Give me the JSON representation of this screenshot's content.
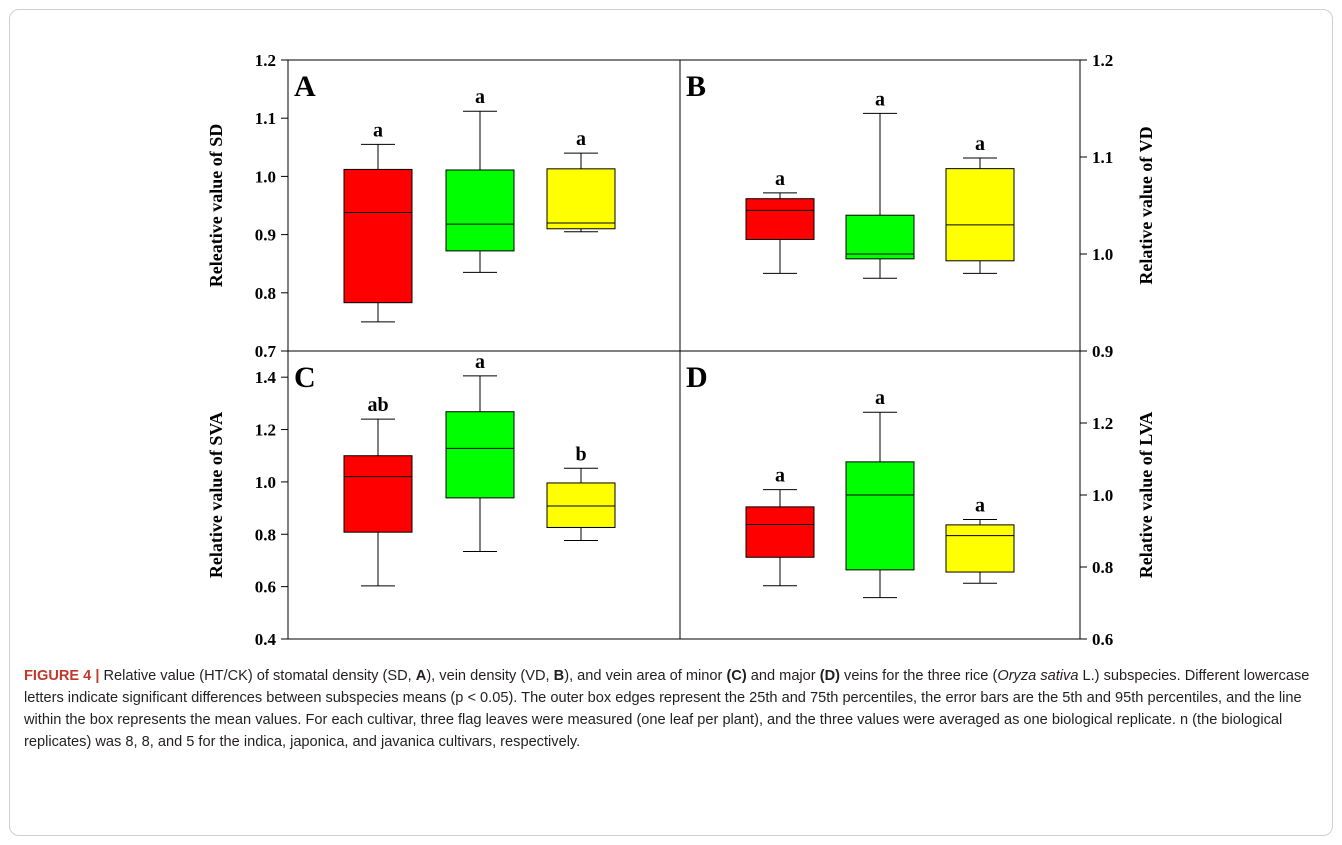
{
  "chart_data": {
    "type": "box",
    "categories": [
      "Indica",
      "Japonica",
      "Javanica"
    ],
    "colors": {
      "Indica": "#ff0000",
      "Japonica": "#00ff00",
      "Javanica": "#ffff00"
    },
    "panels": [
      {
        "label": "A",
        "ylabel": "Releative value of SD",
        "ylim": [
          0.7,
          1.2
        ],
        "yticks": [
          "0.7",
          "0.8",
          "0.9",
          "1.0",
          "1.1",
          "1.2"
        ],
        "axis_side": "left",
        "boxes": [
          {
            "category": "Indica",
            "whisker_low": 0.75,
            "q1": 0.783,
            "mean": 0.938,
            "q3": 1.012,
            "whisker_high": 1.055,
            "letter": "a"
          },
          {
            "category": "Japonica",
            "whisker_low": 0.835,
            "q1": 0.872,
            "mean": 0.918,
            "q3": 1.011,
            "whisker_high": 1.112,
            "letter": "a"
          },
          {
            "category": "Javanica",
            "whisker_low": 0.905,
            "q1": 0.91,
            "mean": 0.92,
            "q3": 1.013,
            "whisker_high": 1.04,
            "letter": "a"
          }
        ]
      },
      {
        "label": "B",
        "ylabel": "Relative value of VD",
        "ylim": [
          0.9,
          1.2
        ],
        "yticks": [
          "0.9",
          "1.0",
          "1.1",
          "1.2"
        ],
        "axis_side": "right",
        "boxes": [
          {
            "category": "Indica",
            "whisker_low": 0.98,
            "q1": 1.015,
            "mean": 1.045,
            "q3": 1.057,
            "whisker_high": 1.063,
            "letter": "a"
          },
          {
            "category": "Japonica",
            "whisker_low": 0.975,
            "q1": 0.995,
            "mean": 1.0,
            "q3": 1.04,
            "whisker_high": 1.145,
            "letter": "a"
          },
          {
            "category": "Javanica",
            "whisker_low": 0.98,
            "q1": 0.993,
            "mean": 1.03,
            "q3": 1.088,
            "whisker_high": 1.099,
            "letter": "a"
          }
        ]
      },
      {
        "label": "C",
        "ylabel": "Relative value of SVA",
        "ylim": [
          0.4,
          1.5
        ],
        "yticks": [
          "0.4",
          "0.6",
          "0.8",
          "1.0",
          "1.2",
          "1.4"
        ],
        "axis_side": "left",
        "boxes": [
          {
            "category": "Indica",
            "whisker_low": 0.603,
            "q1": 0.808,
            "mean": 1.02,
            "q3": 1.1,
            "whisker_high": 1.24,
            "letter": "ab"
          },
          {
            "category": "Japonica",
            "whisker_low": 0.734,
            "q1": 0.939,
            "mean": 1.128,
            "q3": 1.268,
            "whisker_high": 1.405,
            "letter": "a"
          },
          {
            "category": "Javanica",
            "whisker_low": 0.776,
            "q1": 0.826,
            "mean": 0.908,
            "q3": 0.996,
            "whisker_high": 1.052,
            "letter": "b"
          }
        ]
      },
      {
        "label": "D",
        "ylabel": "Relative value of LVA",
        "ylim": [
          0.6,
          1.4
        ],
        "yticks": [
          "0.6",
          "0.8",
          "1.0",
          "1.2"
        ],
        "axis_side": "right",
        "boxes": [
          {
            "category": "Indica",
            "whisker_low": 0.748,
            "q1": 0.827,
            "mean": 0.918,
            "q3": 0.967,
            "whisker_high": 1.015,
            "letter": "a"
          },
          {
            "category": "Japonica",
            "whisker_low": 0.715,
            "q1": 0.792,
            "mean": 1.0,
            "q3": 1.092,
            "whisker_high": 1.23,
            "letter": "a"
          },
          {
            "category": "Javanica",
            "whisker_low": 0.755,
            "q1": 0.786,
            "mean": 0.887,
            "q3": 0.917,
            "whisker_high": 0.932,
            "letter": "a"
          }
        ]
      }
    ]
  },
  "caption": {
    "label": "FIGURE 4 |",
    "t1": " Relative value (HT/CK) of stomatal density (SD, ",
    "A": "A",
    "t2": "), vein density (VD, ",
    "B": "B",
    "t3": "), and vein area of minor ",
    "C": "(C)",
    "t4": " and major ",
    "D": "(D)",
    "t5": " veins for the three rice (",
    "species": "Oryza sativa",
    "t6": " L.) subspecies. Different lowercase letters indicate significant differences between subspecies means (p < 0.05). The outer box edges represent the 25th and 75th percentiles, the error bars are the 5th and 95th percentiles, and the line within the box represents the mean values. For each cultivar, three flag leaves were measured (one leaf per plant), and the three values were averaged as one biological replicate. n (the biological replicates) was 8, 8, and 5 for the indica, japonica, and javanica cultivars, respectively."
  }
}
